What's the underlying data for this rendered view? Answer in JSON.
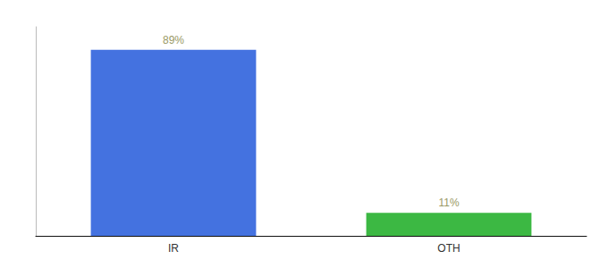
{
  "chart_data": {
    "type": "bar",
    "categories": [
      "IR",
      "OTH"
    ],
    "values": [
      89,
      11
    ],
    "value_labels": [
      "89%",
      "11%"
    ],
    "colors": [
      "#4472e0",
      "#3cb843"
    ],
    "ylim": [
      0,
      100
    ],
    "grid": false,
    "data_labels": true,
    "tick_labels": "x"
  }
}
